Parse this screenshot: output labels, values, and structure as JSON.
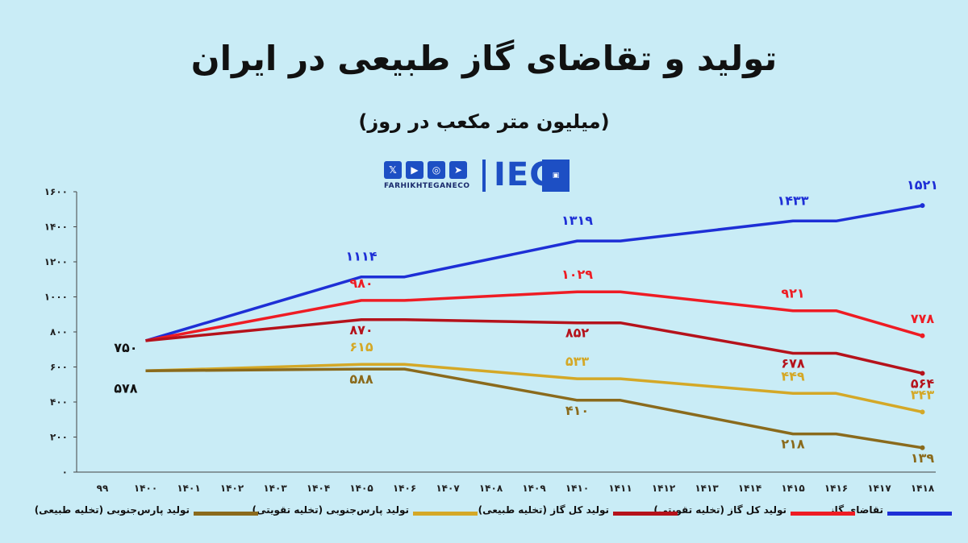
{
  "header": {
    "title": "تولید و تقاضای گاز  طبیعی در ایران",
    "subtitle": "(میلیون متر مکعب در روز)"
  },
  "brand": {
    "handle": "FARHIKHTEGANECO",
    "logo": "IEC",
    "icons": [
      "x-icon",
      "youtube-icon",
      "instagram-icon",
      "telegram-icon"
    ]
  },
  "chart_data": {
    "type": "line",
    "title": "تولید و تقاضای گاز  طبیعی در ایران",
    "subtitle": "(میلیون متر مکعب در روز)",
    "x": [
      "۹۹",
      "۱۴۰۰",
      "۱۴۰۱",
      "۱۴۰۲",
      "۱۴۰۳",
      "۱۴۰۴",
      "۱۴۰۵",
      "۱۴۰۶",
      "۱۴۰۷",
      "۱۴۰۸",
      "۱۴۰۹",
      "۱۴۱۰",
      "۱۴۱۱",
      "۱۴۱۲",
      "۱۴۱۳",
      "۱۴۱۴",
      "۱۴۱۵",
      "۱۴۱۶",
      "۱۴۱۷",
      "۱۴۱۸"
    ],
    "ylim": [
      0,
      1600
    ],
    "yticks": [
      0,
      200,
      400,
      600,
      800,
      1000,
      1200,
      1400,
      1600
    ],
    "ytick_labels": [
      "۰",
      "۲۰۰",
      "۴۰۰",
      "۶۰۰",
      "۸۰۰",
      "۱۰۰۰",
      "۱۲۰۰",
      "۱۴۰۰",
      "۱۶۰۰"
    ],
    "grid": false,
    "legend_position": "bottom",
    "series": [
      {
        "name": "تقاضای گاز",
        "color": "#1e2fd6",
        "points": [
          [
            1,
            750
          ],
          [
            6,
            1114
          ],
          [
            7,
            1114
          ],
          [
            11,
            1319
          ],
          [
            12,
            1319
          ],
          [
            16,
            1433
          ],
          [
            17,
            1433
          ],
          [
            19,
            1521
          ]
        ],
        "labels": [
          {
            "i": 6,
            "y": 1114,
            "text": "۱۱۱۴"
          },
          {
            "i": 11,
            "y": 1319,
            "text": "۱۳۱۹"
          },
          {
            "i": 16,
            "y": 1433,
            "text": "۱۴۳۳"
          },
          {
            "i": 19,
            "y": 1521,
            "text": "۱۵۲۱"
          }
        ]
      },
      {
        "name": "تولید کل گاز (تخلیه تقویتی)",
        "color": "#ee1c24",
        "points": [
          [
            1,
            750
          ],
          [
            6,
            980
          ],
          [
            7,
            980
          ],
          [
            11,
            1029
          ],
          [
            12,
            1029
          ],
          [
            16,
            921
          ],
          [
            17,
            921
          ],
          [
            19,
            778
          ]
        ],
        "labels": [
          {
            "i": 6,
            "y": 980,
            "text": "۹۸۰"
          },
          {
            "i": 11,
            "y": 1029,
            "text": "۱۰۲۹"
          },
          {
            "i": 16,
            "y": 921,
            "text": "۹۲۱"
          },
          {
            "i": 19,
            "y": 778,
            "text": "۷۷۸"
          }
        ]
      },
      {
        "name": "تولید کل گاز (تخلیه طبیعی)",
        "color": "#b5121b",
        "points": [
          [
            1,
            750
          ],
          [
            6,
            870
          ],
          [
            7,
            870
          ],
          [
            11,
            852
          ],
          [
            12,
            852
          ],
          [
            16,
            678
          ],
          [
            17,
            678
          ],
          [
            19,
            564
          ]
        ],
        "labels": [
          {
            "i": 6,
            "y": 870,
            "text": "۸۷۰"
          },
          {
            "i": 11,
            "y": 852,
            "text": "۸۵۲"
          },
          {
            "i": 16,
            "y": 678,
            "text": "۶۷۸"
          },
          {
            "i": 19,
            "y": 564,
            "text": "۵۶۴"
          }
        ]
      },
      {
        "name": "تولید پارس‌جنوبی (تخلیه تقویتی)",
        "color": "#d4a827",
        "points": [
          [
            1,
            578
          ],
          [
            6,
            615
          ],
          [
            7,
            615
          ],
          [
            11,
            533
          ],
          [
            12,
            533
          ],
          [
            16,
            449
          ],
          [
            17,
            449
          ],
          [
            19,
            343
          ]
        ],
        "labels": [
          {
            "i": 6,
            "y": 615,
            "text": "۶۱۵"
          },
          {
            "i": 11,
            "y": 533,
            "text": "۵۳۳"
          },
          {
            "i": 16,
            "y": 449,
            "text": "۴۴۹"
          },
          {
            "i": 19,
            "y": 343,
            "text": "۳۴۳"
          }
        ]
      },
      {
        "name": "تولید پارس‌جنوبی (تخلیه طبیعی)",
        "color": "#8a6a1c",
        "points": [
          [
            1,
            578
          ],
          [
            6,
            588
          ],
          [
            7,
            588
          ],
          [
            11,
            410
          ],
          [
            12,
            410
          ],
          [
            16,
            218
          ],
          [
            17,
            218
          ],
          [
            19,
            139
          ]
        ],
        "labels": [
          {
            "i": 6,
            "y": 588,
            "text": "۵۸۸"
          },
          {
            "i": 11,
            "y": 410,
            "text": "۴۱۰"
          },
          {
            "i": 16,
            "y": 218,
            "text": "۲۱۸"
          },
          {
            "i": 19,
            "y": 139,
            "text": "۱۳۹"
          }
        ]
      }
    ],
    "start_labels": [
      {
        "i": 1,
        "y": 750,
        "text": "۷۵۰"
      },
      {
        "i": 1,
        "y": 578,
        "text": "۵۷۸"
      }
    ]
  }
}
